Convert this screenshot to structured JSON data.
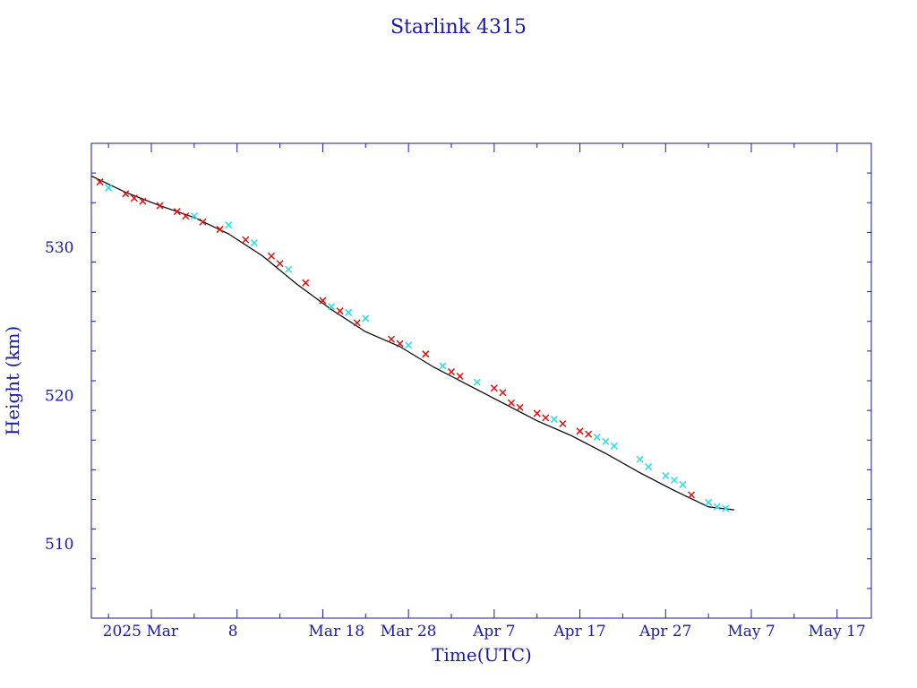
{
  "chart_data": {
    "type": "scatter",
    "title": "Starlink 4315",
    "xlabel": "Time(UTC)",
    "ylabel": "Height (km)",
    "xlim": [
      "2025-02-19",
      "2025-05-21"
    ],
    "ylim": [
      505,
      537
    ],
    "grid": false,
    "x_ticks": [
      "2025-02-26",
      "2025-03-08",
      "2025-03-18",
      "2025-03-28",
      "2025-04-07",
      "2025-04-17",
      "2025-04-27",
      "2025-05-07",
      "2025-05-17"
    ],
    "x_tick_labels": [
      "2025 Mar",
      "8",
      "Mar 18",
      "Mar 28",
      "Apr  7",
      "Apr 17",
      "Apr 27",
      "May  7",
      "May 17"
    ],
    "y_ticks": [
      510,
      520,
      530
    ],
    "y_tick_labels": [
      "510",
      "520",
      "530"
    ],
    "series_colors": {
      "line": "#000000",
      "red": "#e01010",
      "cyan": "#22e0e8",
      "axis": "#1a1aa6"
    },
    "trend": {
      "x": [
        "2025-02-19",
        "2025-02-23",
        "2025-02-27",
        "2025-03-03",
        "2025-03-07",
        "2025-03-11",
        "2025-03-15",
        "2025-03-19",
        "2025-03-23",
        "2025-03-27",
        "2025-03-31",
        "2025-04-04",
        "2025-04-08",
        "2025-04-12",
        "2025-04-16",
        "2025-04-20",
        "2025-04-24",
        "2025-04-28",
        "2025-05-02",
        "2025-05-05"
      ],
      "y": [
        534.8,
        533.7,
        532.8,
        532.0,
        530.9,
        529.4,
        527.5,
        525.8,
        524.3,
        523.3,
        521.9,
        520.7,
        519.5,
        518.3,
        517.3,
        516.1,
        514.8,
        513.6,
        512.5,
        512.3
      ]
    },
    "red_points": {
      "x": [
        "2025-02-20",
        "2025-02-23",
        "2025-02-24",
        "2025-02-25",
        "2025-02-27",
        "2025-03-01",
        "2025-03-02",
        "2025-03-04",
        "2025-03-06",
        "2025-03-09",
        "2025-03-12",
        "2025-03-13",
        "2025-03-16",
        "2025-03-18",
        "2025-03-20",
        "2025-03-22",
        "2025-03-26",
        "2025-03-27",
        "2025-03-30",
        "2025-04-02",
        "2025-04-03",
        "2025-04-07",
        "2025-04-08",
        "2025-04-09",
        "2025-04-10",
        "2025-04-12",
        "2025-04-13",
        "2025-04-15",
        "2025-04-17",
        "2025-04-18",
        "2025-04-30"
      ],
      "y": [
        534.4,
        533.6,
        533.3,
        533.1,
        532.8,
        532.4,
        532.1,
        531.7,
        531.2,
        530.5,
        529.4,
        528.9,
        527.6,
        526.4,
        525.7,
        524.9,
        523.8,
        523.5,
        522.8,
        521.6,
        521.3,
        520.5,
        520.2,
        519.5,
        519.2,
        518.8,
        518.5,
        518.1,
        517.6,
        517.4,
        513.3
      ]
    },
    "cyan_points": {
      "x": [
        "2025-02-21",
        "2025-03-03",
        "2025-03-07",
        "2025-03-10",
        "2025-03-14",
        "2025-03-19",
        "2025-03-21",
        "2025-03-23",
        "2025-03-28",
        "2025-04-01",
        "2025-04-05",
        "2025-04-14",
        "2025-04-19",
        "2025-04-20",
        "2025-04-21",
        "2025-04-24",
        "2025-04-25",
        "2025-04-27",
        "2025-04-28",
        "2025-04-29",
        "2025-05-02",
        "2025-05-03",
        "2025-05-04"
      ],
      "y": [
        534.0,
        532.1,
        531.5,
        530.3,
        528.5,
        526.0,
        525.6,
        525.2,
        523.4,
        522.0,
        520.9,
        518.4,
        517.2,
        516.9,
        516.6,
        515.7,
        515.2,
        514.6,
        514.3,
        514.0,
        512.8,
        512.5,
        512.4
      ]
    }
  }
}
